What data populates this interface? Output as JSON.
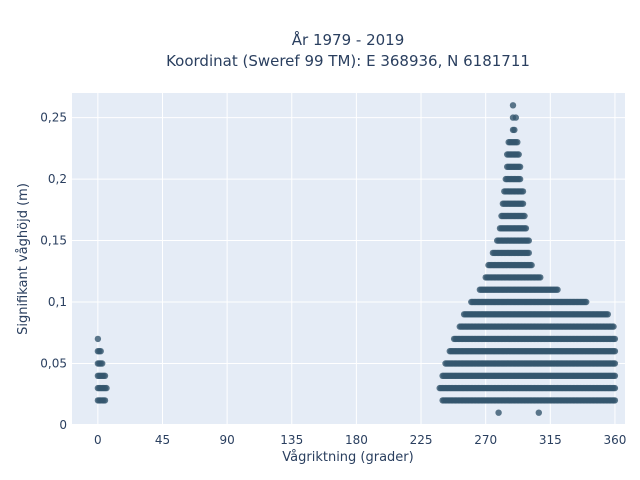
{
  "chart_data": {
    "type": "scatter",
    "title": "År 1979 - 2019",
    "subtitle": "Koordinat (Sweref 99 TM): E 368936, N 6181711",
    "xlabel": "Vågriktning (grader)",
    "ylabel": "Signifikant våghöjd (m)",
    "xlim": [
      -18,
      367
    ],
    "ylim": [
      0,
      0.27
    ],
    "x_ticks": [
      0,
      45,
      90,
      135,
      180,
      225,
      270,
      315,
      360
    ],
    "x_tick_labels": [
      "0",
      "45",
      "90",
      "135",
      "180",
      "225",
      "270",
      "315",
      "360"
    ],
    "y_ticks": [
      0,
      0.05,
      0.1,
      0.15,
      0.2,
      0.25
    ],
    "y_tick_labels": [
      "0",
      "0,05",
      "0,1",
      "0,15",
      "0,2",
      "0,25"
    ],
    "grid": true,
    "marker_color": "#34566e",
    "plot_bg": "#e5ecf6",
    "point_bands": [
      {
        "y": 0.01,
        "x_points": [
          279,
          307
        ]
      },
      {
        "y": 0.02,
        "x_ranges": [
          [
            0,
            5
          ],
          [
            240,
            360
          ]
        ]
      },
      {
        "y": 0.03,
        "x_ranges": [
          [
            0,
            6
          ],
          [
            238,
            360
          ]
        ]
      },
      {
        "y": 0.04,
        "x_ranges": [
          [
            0,
            5
          ],
          [
            240,
            360
          ]
        ]
      },
      {
        "y": 0.05,
        "x_ranges": [
          [
            0,
            3
          ],
          [
            242,
            360
          ]
        ]
      },
      {
        "y": 0.06,
        "x_ranges": [
          [
            0,
            2
          ],
          [
            245,
            360
          ]
        ]
      },
      {
        "y": 0.07,
        "x_ranges": [
          [
            0,
            0
          ],
          [
            248,
            360
          ]
        ]
      },
      {
        "y": 0.08,
        "x_ranges": [
          [
            252,
            359
          ]
        ]
      },
      {
        "y": 0.09,
        "x_ranges": [
          [
            255,
            355
          ]
        ]
      },
      {
        "y": 0.1,
        "x_ranges": [
          [
            260,
            340
          ]
        ]
      },
      {
        "y": 0.11,
        "x_ranges": [
          [
            266,
            320
          ]
        ]
      },
      {
        "y": 0.12,
        "x_ranges": [
          [
            270,
            308
          ]
        ]
      },
      {
        "y": 0.13,
        "x_ranges": [
          [
            272,
            302
          ]
        ]
      },
      {
        "y": 0.14,
        "x_ranges": [
          [
            275,
            300
          ]
        ]
      },
      {
        "y": 0.15,
        "x_ranges": [
          [
            278,
            300
          ]
        ]
      },
      {
        "y": 0.16,
        "x_ranges": [
          [
            280,
            298
          ]
        ]
      },
      {
        "y": 0.17,
        "x_ranges": [
          [
            281,
            297
          ]
        ]
      },
      {
        "y": 0.18,
        "x_ranges": [
          [
            282,
            296
          ]
        ]
      },
      {
        "y": 0.19,
        "x_ranges": [
          [
            283,
            296
          ]
        ]
      },
      {
        "y": 0.2,
        "x_ranges": [
          [
            284,
            294
          ]
        ]
      },
      {
        "y": 0.21,
        "x_ranges": [
          [
            285,
            294
          ]
        ]
      },
      {
        "y": 0.22,
        "x_ranges": [
          [
            285,
            293
          ]
        ]
      },
      {
        "y": 0.23,
        "x_ranges": [
          [
            286,
            292
          ]
        ]
      },
      {
        "y": 0.24,
        "x_ranges": [
          [
            289,
            290
          ]
        ]
      },
      {
        "y": 0.25,
        "x_points": [
          289,
          291
        ]
      },
      {
        "y": 0.26,
        "x_points": [
          289
        ]
      }
    ]
  }
}
